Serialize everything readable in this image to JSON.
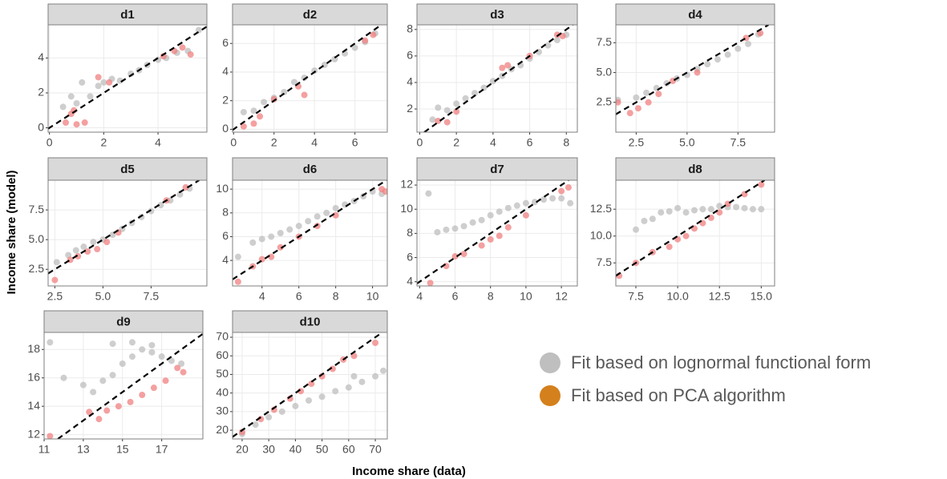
{
  "chart_data": [
    {
      "type": "scatter",
      "title": "d1",
      "xlim": [
        -0.05,
        5.8
      ],
      "ylim": [
        -0.25,
        5.9
      ],
      "xticks": [
        0,
        2,
        4
      ],
      "yticks": [
        0,
        2,
        4
      ],
      "grid": true,
      "series": [
        {
          "color": "#bdbdbd",
          "x": [
            0.5,
            0.8,
            1,
            1.2,
            1.5,
            1.8,
            2,
            2.3,
            2.6,
            3,
            3.3,
            3.6,
            4,
            4.3,
            4.7,
            5.1,
            5.5
          ],
          "values": [
            1.2,
            1.8,
            1.4,
            2.6,
            1.8,
            2.4,
            2.6,
            2.8,
            2.7,
            3.1,
            3.3,
            3.6,
            3.9,
            4,
            4.3,
            4.4,
            5.6
          ]
        },
        {
          "color": "#f08080",
          "x": [
            0.6,
            0.8,
            1,
            1.3,
            0.9,
            1.8,
            2.2,
            4.2,
            4.6,
            4.9,
            5.2
          ],
          "values": [
            0.3,
            0.8,
            0.2,
            0.3,
            1.0,
            2.9,
            2.6,
            4.1,
            4.4,
            4.6,
            4.2
          ]
        }
      ]
    },
    {
      "type": "scatter",
      "title": "d2",
      "xlim": [
        -0.05,
        7.6
      ],
      "ylim": [
        -0.2,
        7.3
      ],
      "xticks": [
        0,
        2,
        4,
        6
      ],
      "yticks": [
        0,
        2,
        4,
        6
      ],
      "grid": true,
      "series": [
        {
          "color": "#bdbdbd",
          "x": [
            0.5,
            1,
            1.5,
            2,
            2.5,
            3,
            3.5,
            4,
            4.5,
            5,
            5.5,
            6,
            6.5,
            7
          ],
          "values": [
            1.2,
            1.3,
            1.9,
            2.2,
            2.6,
            3.3,
            3.6,
            4.1,
            4.5,
            4.9,
            5.3,
            5.7,
            6.1,
            6.7
          ]
        },
        {
          "color": "#f08080",
          "x": [
            0.5,
            1,
            1.3,
            2,
            3.2,
            3.5,
            6.5,
            6.9
          ],
          "values": [
            0.2,
            0.4,
            0.9,
            2.1,
            3.0,
            2.4,
            6.2,
            6.6
          ]
        }
      ]
    },
    {
      "type": "scatter",
      "title": "d3",
      "xlim": [
        -0.15,
        8.6
      ],
      "ylim": [
        0.25,
        8.35
      ],
      "xticks": [
        0,
        2,
        4,
        6,
        8
      ],
      "yticks": [
        2,
        4,
        6,
        8
      ],
      "grid": true,
      "series": [
        {
          "color": "#bdbdbd",
          "x": [
            0.7,
            1,
            1.5,
            2,
            2.5,
            3,
            3.5,
            4,
            4.5,
            5,
            5.5,
            6,
            6.5,
            7,
            7.5,
            8
          ],
          "values": [
            1.2,
            2.1,
            1.9,
            2.4,
            2.8,
            3.2,
            3.6,
            4.1,
            4.5,
            5,
            5.3,
            5.8,
            6.3,
            6.8,
            7.2,
            7.6
          ]
        },
        {
          "color": "#f08080",
          "x": [
            1,
            1.5,
            2,
            4.5,
            4.8,
            6,
            7.5,
            7.8
          ],
          "values": [
            1.1,
            1.0,
            1.8,
            5.1,
            5.3,
            6,
            7.6,
            7.5
          ]
        }
      ]
    },
    {
      "type": "scatter",
      "title": "d4",
      "xlim": [
        1.5,
        9.3
      ],
      "ylim": [
        0,
        9
      ],
      "xticks": [
        2.5,
        {
          "value": 5,
          "label": "5.0"
        },
        7.5
      ],
      "yticks": [
        2.5,
        {
          "value": 5,
          "label": "5.0"
        },
        7.5
      ],
      "grid": true,
      "series": [
        {
          "color": "#bdbdbd",
          "x": [
            1.6,
            2.5,
            3,
            3.5,
            4,
            4.5,
            5,
            5.5,
            6,
            6.5,
            7,
            7.5,
            8,
            8.5
          ],
          "values": [
            2.7,
            2.9,
            3.3,
            3.7,
            4.1,
            4.5,
            4.8,
            5.3,
            5.7,
            6.1,
            6.5,
            7,
            7.4,
            8.2
          ]
        },
        {
          "color": "#f08080",
          "x": [
            1.6,
            2.2,
            2.6,
            3.1,
            3.6,
            4.3,
            5.5,
            7.9,
            8.6
          ],
          "values": [
            2.5,
            1.6,
            2.0,
            2.5,
            3.2,
            4.3,
            5.0,
            7.9,
            8.3
          ]
        }
      ]
    },
    {
      "type": "scatter",
      "title": "d5",
      "xlim": [
        2.15,
        10.4
      ],
      "ylim": [
        1.1,
        10
      ],
      "xticks": [
        2.5,
        {
          "value": 5,
          "label": "5.0"
        },
        7.5
      ],
      "yticks": [
        2.5,
        {
          "value": 5,
          "label": "5.0"
        },
        7.5
      ],
      "grid": true,
      "series": [
        {
          "color": "#bdbdbd",
          "x": [
            2.6,
            3.2,
            3.6,
            4,
            4.5,
            5,
            5.5,
            6,
            6.5,
            7,
            7.5,
            8,
            8.5,
            9,
            9.5
          ],
          "values": [
            3.1,
            3.7,
            4.1,
            4.4,
            4.8,
            5,
            5.4,
            5.9,
            6.4,
            6.9,
            7.4,
            7.9,
            8.3,
            8.8,
            9.3
          ]
        },
        {
          "color": "#f08080",
          "x": [
            2.5,
            3.3,
            3.7,
            4.2,
            4.7,
            5.2,
            5.8,
            8.3,
            9.3
          ],
          "values": [
            1.6,
            3.3,
            3.6,
            4,
            4.2,
            4.8,
            5.6,
            8.3,
            9.4
          ]
        }
      ]
    },
    {
      "type": "scatter",
      "title": "d6",
      "xlim": [
        2.4,
        10.8
      ],
      "ylim": [
        1.85,
        10.75
      ],
      "xticks": [
        4,
        6,
        8,
        10
      ],
      "yticks": [
        4,
        6,
        8,
        10
      ],
      "grid": true,
      "series": [
        {
          "color": "#bdbdbd",
          "x": [
            2.7,
            3.5,
            4,
            4.5,
            5,
            5.5,
            6,
            6.5,
            7,
            7.5,
            8,
            8.5,
            9,
            9.5,
            10,
            10.5
          ],
          "values": [
            4.3,
            5.5,
            5.8,
            6,
            6.3,
            6.6,
            6.9,
            7.3,
            7.7,
            8,
            8.4,
            8.7,
            9,
            9.4,
            9.8,
            9.6
          ]
        },
        {
          "color": "#f08080",
          "x": [
            2.7,
            3.5,
            4,
            4.5,
            5,
            6,
            7,
            8,
            10.5,
            10.7
          ],
          "values": [
            2.2,
            3.5,
            4.1,
            4.3,
            5.1,
            6,
            6.9,
            7.8,
            10,
            9.8
          ]
        }
      ]
    },
    {
      "type": "scatter",
      "title": "d7",
      "xlim": [
        3.85,
        12.9
      ],
      "ylim": [
        3.65,
        12.4
      ],
      "xticks": [
        4,
        6,
        8,
        10,
        12
      ],
      "yticks": [
        4,
        6,
        8,
        10,
        12
      ],
      "grid": true,
      "series": [
        {
          "color": "#bdbdbd",
          "x": [
            4.5,
            5,
            5.5,
            6,
            6.5,
            7,
            7.5,
            8,
            8.5,
            9,
            9.5,
            10,
            10.5,
            11,
            11.5,
            12,
            12.5
          ],
          "values": [
            11.3,
            8.1,
            8.3,
            8.4,
            8.6,
            8.9,
            9.1,
            9.5,
            9.8,
            10.1,
            10.3,
            10.5,
            10.6,
            10.8,
            10.9,
            10.9,
            10.5
          ]
        },
        {
          "color": "#f08080",
          "x": [
            4.6,
            5.5,
            6,
            6.5,
            7.5,
            8,
            8.5,
            9,
            10,
            12,
            12.4
          ],
          "values": [
            3.9,
            5.3,
            6.1,
            6.3,
            7,
            7.5,
            7.8,
            8.5,
            9.5,
            11.5,
            11.8
          ]
        }
      ]
    },
    {
      "type": "scatter",
      "title": "d8",
      "xlim": [
        6.3,
        15.8
      ],
      "ylim": [
        5.35,
        15.2
      ],
      "xticks": [
        7.5,
        {
          "value": 10,
          "label": "10.0"
        },
        12.5,
        {
          "value": 15,
          "label": "15.0"
        }
      ],
      "yticks": [
        7.5,
        {
          "value": 10,
          "label": "10.0"
        },
        12.5
      ],
      "grid": true,
      "series": [
        {
          "color": "#bdbdbd",
          "x": [
            7.5,
            8,
            8.5,
            9,
            9.5,
            10,
            10.5,
            11,
            11.5,
            12,
            12.5,
            13,
            13.5,
            14,
            14.5,
            15
          ],
          "values": [
            10.6,
            11.4,
            11.6,
            12.2,
            12.3,
            12.6,
            12.2,
            12.4,
            12.5,
            12.5,
            12.8,
            12.7,
            12.7,
            12.6,
            12.5,
            12.5
          ]
        },
        {
          "color": "#f08080",
          "x": [
            6.5,
            7.5,
            8.5,
            9.5,
            10,
            10.5,
            11,
            11.5,
            12,
            12.5,
            13,
            14,
            15
          ],
          "values": [
            6.3,
            7.5,
            8.5,
            9,
            9.7,
            10,
            10.7,
            11.2,
            11.7,
            12.2,
            13,
            13.9,
            14.8
          ]
        }
      ]
    },
    {
      "type": "scatter",
      "title": "d9",
      "xlim": [
        11,
        19.1
      ],
      "ylim": [
        11.7,
        19.2
      ],
      "xticks": [
        11,
        13,
        15,
        17
      ],
      "yticks": [
        12,
        14,
        16,
        18
      ],
      "grid": true,
      "series": [
        {
          "color": "#bdbdbd",
          "x": [
            11.3,
            12,
            13,
            13.5,
            14,
            14.5,
            15,
            15.5,
            16,
            16.5,
            17,
            17.5,
            18,
            14.5,
            15.5,
            16.5
          ],
          "values": [
            18.5,
            16,
            15.5,
            15,
            15.8,
            16.2,
            17,
            17.5,
            18,
            17.8,
            17.5,
            17.2,
            17,
            18.4,
            18.5,
            18.3
          ]
        },
        {
          "color": "#f08080",
          "x": [
            11.3,
            13.3,
            13.8,
            14.2,
            14.8,
            15.4,
            16,
            16.6,
            17.2,
            17.8,
            18.1
          ],
          "values": [
            11.9,
            13.6,
            13.1,
            13.7,
            14,
            14.3,
            14.8,
            15.3,
            15.8,
            16.7,
            16.4
          ]
        }
      ]
    },
    {
      "type": "scatter",
      "title": "d10",
      "xlim": [
        16.4,
        74.5
      ],
      "ylim": [
        15.3,
        72.6
      ],
      "xticks": [
        20,
        30,
        40,
        50,
        60,
        70
      ],
      "yticks": [
        20,
        30,
        40,
        50,
        60,
        70
      ],
      "grid": true,
      "series": [
        {
          "color": "#bdbdbd",
          "x": [
            20,
            25,
            30,
            35,
            40,
            45,
            50,
            55,
            60,
            65,
            70,
            73,
            62
          ],
          "values": [
            18,
            23,
            27,
            30,
            33,
            36,
            38,
            41,
            43,
            46,
            49,
            52,
            49
          ]
        },
        {
          "color": "#f08080",
          "x": [
            20,
            27,
            32,
            38,
            42,
            46,
            50,
            54,
            58,
            62,
            70
          ],
          "values": [
            19,
            26,
            31,
            37,
            41,
            45,
            49,
            53,
            58,
            60,
            67
          ]
        }
      ]
    }
  ],
  "xlabel": "Income share (data)",
  "ylabel": "Income share (model)",
  "legend": [
    {
      "name": "Fit based on lognormal functional form",
      "color": "#bfbfbf"
    },
    {
      "name": "Fit based on PCA algorithm",
      "color": "#d4801c"
    }
  ]
}
